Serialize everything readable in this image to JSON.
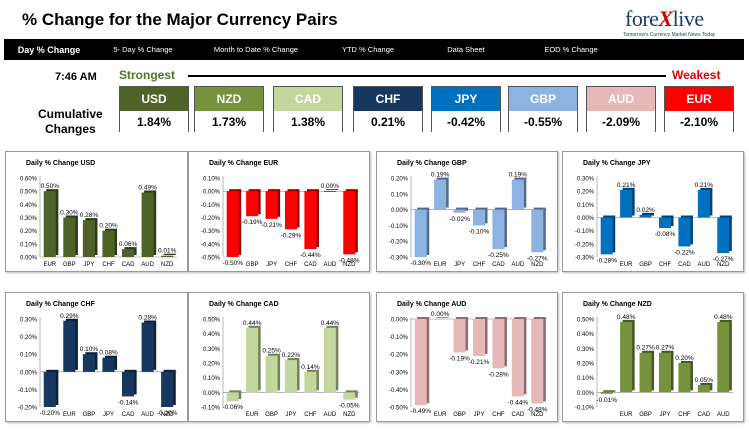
{
  "header": {
    "title": "% Change for the Major Currency Pairs",
    "logo": {
      "brand_main": "fore",
      "brand_x": "X",
      "brand_end": "live",
      "tagline": "Tomorrow's Currency Market News Today"
    }
  },
  "nav": {
    "tabs": [
      {
        "label": "Day % Change",
        "active": true
      },
      {
        "label": "5- Day % Change",
        "active": false
      },
      {
        "label": "Month to Date % Change",
        "active": false
      },
      {
        "label": "YTD % Change",
        "active": false
      },
      {
        "label": "Data Sheet",
        "active": false
      },
      {
        "label": "EOD % Change",
        "active": false
      }
    ]
  },
  "summary": {
    "time": "7:46 AM",
    "strongest_label": "Strongest",
    "weakest_label": "Weakest",
    "cumulative_label_line1": "Cumulative",
    "cumulative_label_line2": "Changes",
    "currencies": [
      {
        "code": "USD",
        "value": "1.84%",
        "color": "#4f6228"
      },
      {
        "code": "NZD",
        "value": "1.73%",
        "color": "#76923c"
      },
      {
        "code": "CAD",
        "value": "1.38%",
        "color": "#c3d69b"
      },
      {
        "code": "CHF",
        "value": "0.21%",
        "color": "#17375e"
      },
      {
        "code": "JPY",
        "value": "-0.42%",
        "color": "#0070c0"
      },
      {
        "code": "GBP",
        "value": "-0.55%",
        "color": "#8db3e2"
      },
      {
        "code": "AUD",
        "value": "-2.09%",
        "color": "#e6b9b8"
      },
      {
        "code": "EUR",
        "value": "-2.10%",
        "color": "#ff0000"
      }
    ]
  },
  "chart_data": [
    {
      "type": "bar",
      "title": "Daily % Change USD",
      "color": "#4f6228",
      "ylim": [
        0,
        0.6
      ],
      "ticks": [
        "0.00%",
        "0.10%",
        "0.20%",
        "0.30%",
        "0.40%",
        "0.50%",
        "0.60%"
      ],
      "categories": [
        "EUR",
        "GBP",
        "JPY",
        "CHF",
        "CAD",
        "AUD",
        "NZD"
      ],
      "values": [
        0.5,
        0.3,
        0.28,
        0.2,
        0.06,
        0.49,
        0.01
      ],
      "labels": [
        "0.50%",
        "0.30%",
        "0.28%",
        "0.20%",
        "0.06%",
        "0.49%",
        "0.01%"
      ]
    },
    {
      "type": "bar",
      "title": "Daily % Change EUR",
      "color": "#ff0000",
      "ylim": [
        -0.5,
        0.1
      ],
      "ticks": [
        "-0.50%",
        "-0.40%",
        "-0.30%",
        "-0.20%",
        "-0.10%",
        "0.00%",
        "0.10%"
      ],
      "categories": [
        "GBP",
        "JPY",
        "CHF",
        "CAD",
        "AUD",
        "NZD"
      ],
      "values": [
        -0.5,
        -0.19,
        -0.21,
        -0.29,
        -0.44,
        0.0,
        -0.48
      ],
      "labels": [
        "-0.50%",
        "-0.19%",
        "-0.21%",
        "-0.29%",
        "-0.44%",
        "0.00%",
        "-0.48%"
      ],
      "first_is_usd": true
    },
    {
      "type": "bar",
      "title": "Daily % Change GBP",
      "color": "#8db3e2",
      "ylim": [
        -0.3,
        0.2
      ],
      "ticks": [
        "-0.30%",
        "-0.20%",
        "-0.10%",
        "0.00%",
        "0.10%",
        "0.20%"
      ],
      "categories": [
        "EUR",
        "JPY",
        "CHF",
        "CAD",
        "AUD",
        "NZD"
      ],
      "values": [
        -0.3,
        0.19,
        -0.02,
        -0.1,
        -0.25,
        0.19,
        -0.27
      ],
      "labels": [
        "-0.30%",
        "0.19%",
        "-0.02%",
        "-0.10%",
        "-0.25%",
        "0.19%",
        "-0.27%"
      ],
      "first_is_usd": true
    },
    {
      "type": "bar",
      "title": "Daily % Change JPY",
      "color": "#0070c0",
      "ylim": [
        -0.3,
        0.3
      ],
      "ticks": [
        "-0.30%",
        "-0.20%",
        "-0.10%",
        "0.00%",
        "0.10%",
        "0.20%",
        "0.30%"
      ],
      "categories": [
        "EUR",
        "GBP",
        "CHF",
        "CAD",
        "AUD",
        "NZD"
      ],
      "values": [
        -0.28,
        0.21,
        0.02,
        -0.08,
        -0.22,
        0.21,
        -0.27
      ],
      "labels": [
        "-0.28%",
        "0.21%",
        "0.02%",
        "-0.08%",
        "-0.22%",
        "0.21%",
        "-0.27%"
      ],
      "first_is_usd": true
    },
    {
      "type": "bar",
      "title": "Daily % Change CHF",
      "color": "#17375e",
      "ylim": [
        -0.2,
        0.3
      ],
      "ticks": [
        "-0.20%",
        "-0.10%",
        "0.00%",
        "0.10%",
        "0.20%",
        "0.30%"
      ],
      "categories": [
        "EUR",
        "GBP",
        "JPY",
        "CAD",
        "AUD",
        "NZD"
      ],
      "values": [
        -0.2,
        0.29,
        0.1,
        0.08,
        -0.14,
        0.28,
        -0.2
      ],
      "labels": [
        "-0.20%",
        "0.29%",
        "0.10%",
        "0.08%",
        "-0.14%",
        "0.28%",
        "-0.20%"
      ],
      "first_is_usd": true
    },
    {
      "type": "bar",
      "title": "Daily % Change CAD",
      "color": "#c3d69b",
      "ylim": [
        -0.1,
        0.5
      ],
      "ticks": [
        "-0.10%",
        "0.00%",
        "0.10%",
        "0.20%",
        "0.30%",
        "0.40%",
        "0.50%"
      ],
      "categories": [
        "EUR",
        "GBP",
        "JPY",
        "CHF",
        "AUD",
        "NZD"
      ],
      "values": [
        -0.06,
        0.44,
        0.25,
        0.22,
        0.14,
        0.44,
        -0.05
      ],
      "labels": [
        "-0.06%",
        "0.44%",
        "0.25%",
        "0.22%",
        "0.14%",
        "0.44%",
        "-0.05%"
      ],
      "first_is_usd": true
    },
    {
      "type": "bar",
      "title": "Daily % Change AUD",
      "color": "#e6b9b8",
      "ylim": [
        -0.5,
        0.0
      ],
      "ticks": [
        "-0.50%",
        "-0.40%",
        "-0.30%",
        "-0.20%",
        "-0.10%",
        "0.00%"
      ],
      "categories": [
        "EUR",
        "GBP",
        "JPY",
        "CHF",
        "CAD",
        "NZD"
      ],
      "values": [
        -0.49,
        0.0,
        -0.19,
        -0.21,
        -0.28,
        -0.44,
        -0.48
      ],
      "labels": [
        "-0.49%",
        "0.00%",
        "-0.19%",
        "-0.21%",
        "-0.28%",
        "-0.44%",
        "-0.48%"
      ],
      "first_is_usd": true
    },
    {
      "type": "bar",
      "title": "Daily % Change NZD",
      "color": "#76923c",
      "ylim": [
        -0.1,
        0.5
      ],
      "ticks": [
        "-0.10%",
        "0.00%",
        "0.10%",
        "0.20%",
        "0.30%",
        "0.40%",
        "0.50%"
      ],
      "categories": [
        "EUR",
        "GBP",
        "JPY",
        "CHF",
        "CAD",
        "AUD"
      ],
      "values": [
        -0.01,
        0.48,
        0.27,
        0.27,
        0.2,
        0.05,
        0.48
      ],
      "labels": [
        "-0.01%",
        "0.48%",
        "0.27%",
        "0.27%",
        "0.20%",
        "0.05%",
        "0.48%"
      ],
      "first_is_usd": true
    }
  ]
}
